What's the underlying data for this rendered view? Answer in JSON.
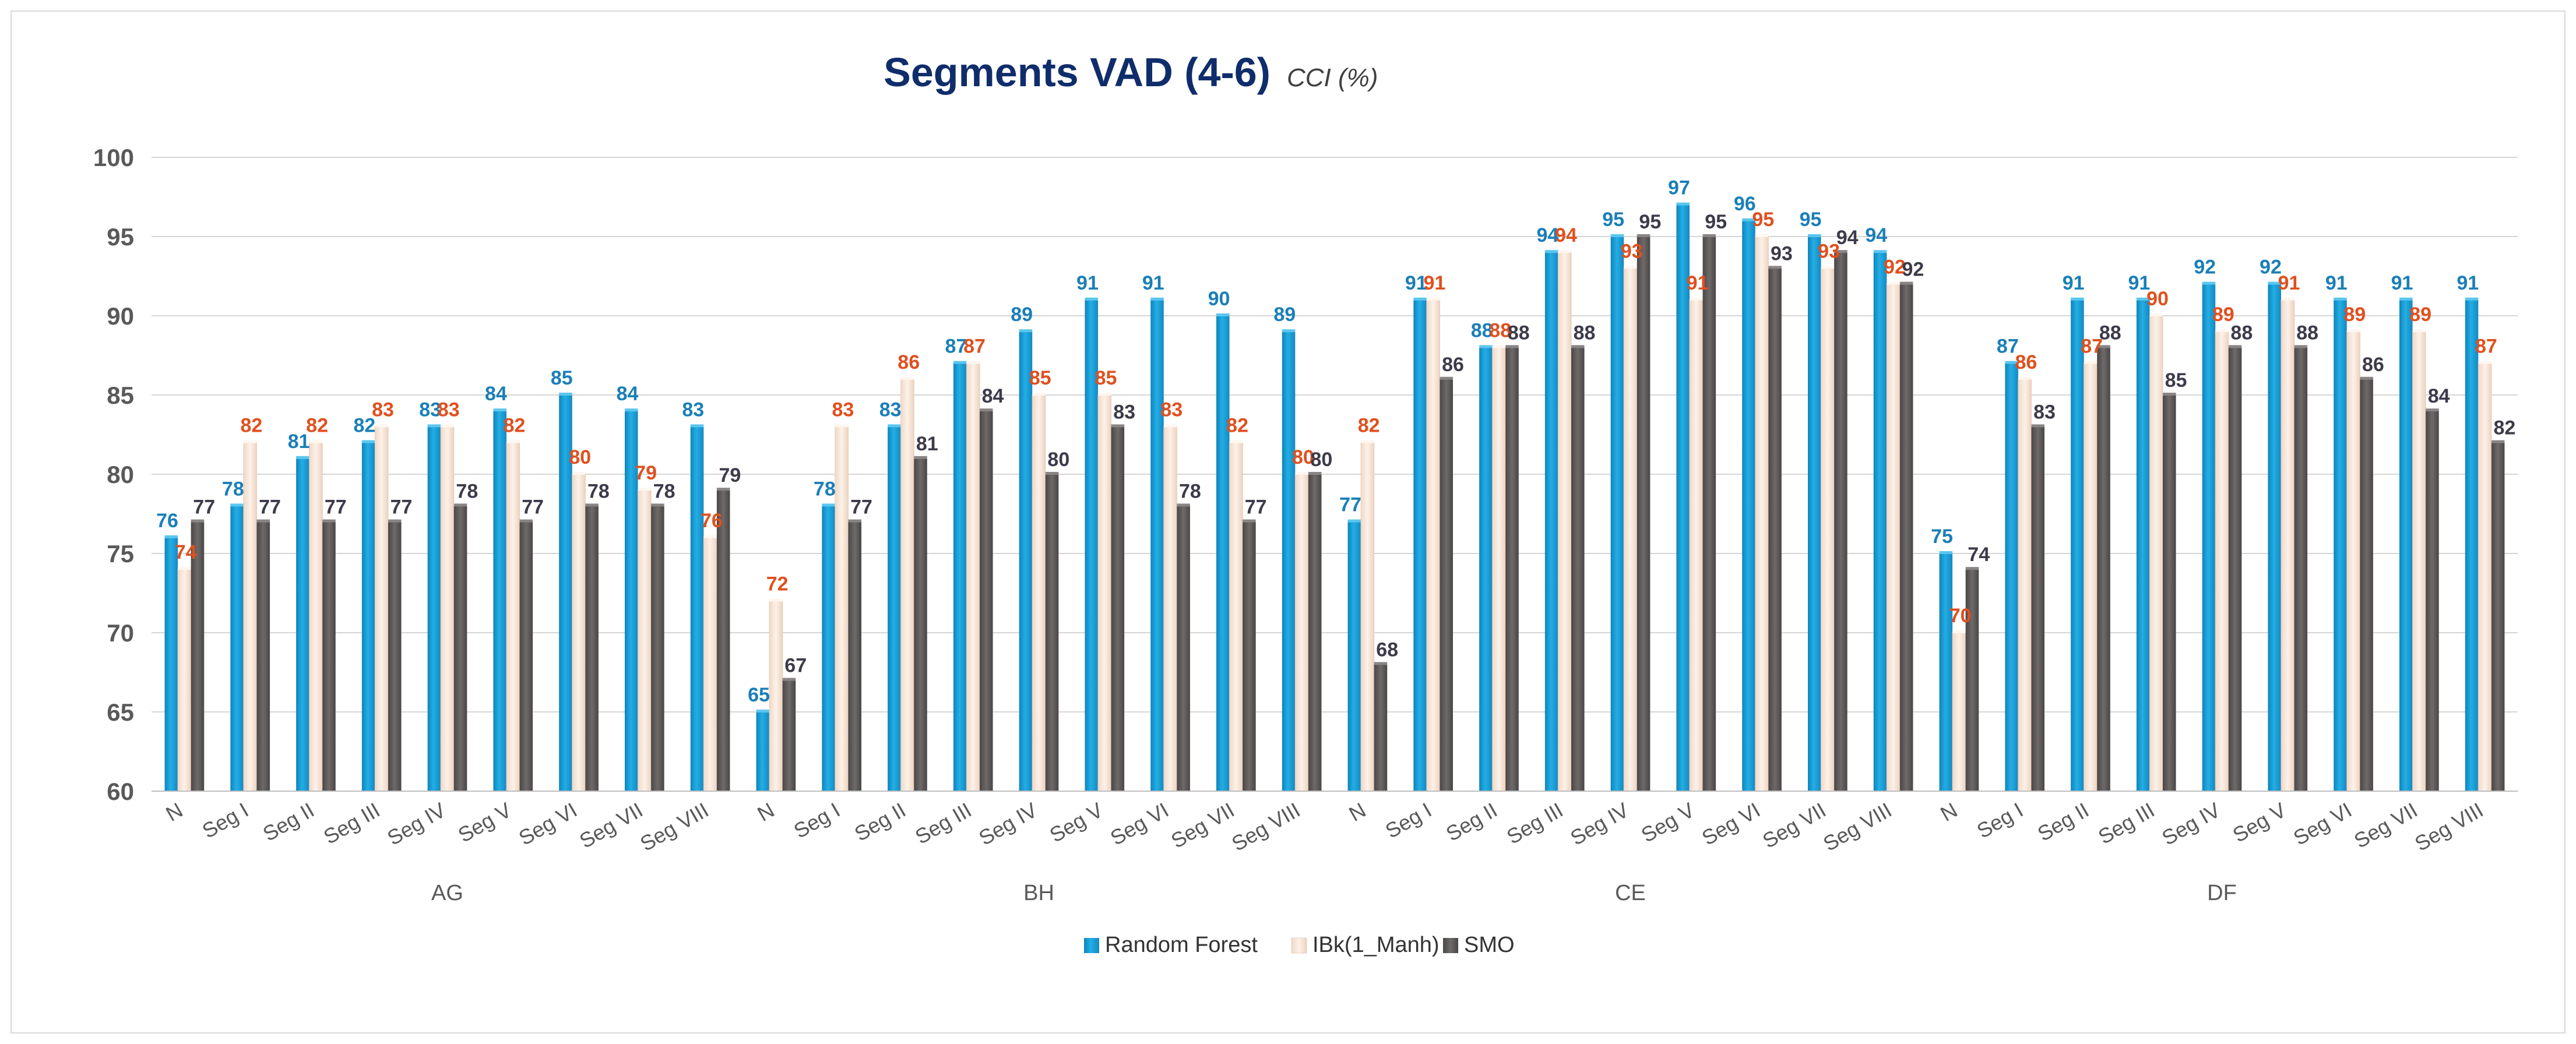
{
  "chart_data": {
    "type": "bar",
    "title": "Segments VAD (4-6)",
    "subtitle": "CCI (%)",
    "xlabel": "",
    "ylabel": "",
    "ylim": [
      60,
      100
    ],
    "yticks": [
      60,
      65,
      70,
      75,
      80,
      85,
      90,
      95,
      100
    ],
    "grid": true,
    "legend_position": "bottom",
    "groups": [
      "AG",
      "BH",
      "CE",
      "DF"
    ],
    "categories": [
      "N",
      "Seg I",
      "Seg II",
      "Seg III",
      "Seg IV",
      "Seg V",
      "Seg VI",
      "Seg VII",
      "Seg VIII"
    ],
    "series": [
      {
        "name": "Random Forest",
        "color": "#1a9ed8",
        "label_color": "#1a7fb8",
        "values": {
          "AG": [
            76,
            78,
            81,
            82,
            83,
            84,
            85,
            84,
            83
          ],
          "BH": [
            65,
            78,
            83,
            87,
            89,
            91,
            91,
            90,
            89
          ],
          "CE": [
            77,
            91,
            88,
            94,
            95,
            97,
            96,
            95,
            94
          ],
          "DF": [
            75,
            87,
            91,
            91,
            92,
            92,
            91,
            91,
            91
          ]
        }
      },
      {
        "name": "IBk(1_Manh)",
        "color": "#fae7d9",
        "label_color": "#e0501e",
        "values": {
          "AG": [
            74,
            82,
            82,
            83,
            83,
            82,
            80,
            79,
            76
          ],
          "BH": [
            72,
            83,
            86,
            87,
            85,
            85,
            83,
            82,
            80
          ],
          "CE": [
            82,
            91,
            88,
            94,
            93,
            91,
            95,
            93,
            92
          ],
          "DF": [
            70,
            86,
            87,
            90,
            89,
            91,
            89,
            89,
            87
          ]
        }
      },
      {
        "name": "SMO",
        "color": "#5e5a5a",
        "label_color": "#3d3a4a",
        "values": {
          "AG": [
            77,
            77,
            77,
            77,
            78,
            77,
            78,
            78,
            79
          ],
          "BH": [
            67,
            77,
            81,
            84,
            80,
            83,
            78,
            77,
            80
          ],
          "CE": [
            68,
            86,
            88,
            88,
            95,
            95,
            93,
            94,
            92
          ],
          "DF": [
            74,
            83,
            88,
            85,
            88,
            88,
            86,
            84,
            82
          ]
        }
      }
    ]
  }
}
